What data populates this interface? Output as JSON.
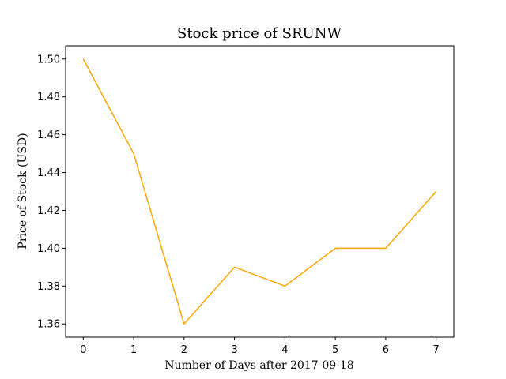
{
  "chart_data": {
    "type": "line",
    "title": "Stock price of SRUNW",
    "xlabel": "Number of Days after 2017-09-18",
    "ylabel": "Price of Stock (USD)",
    "x": [
      0,
      1,
      2,
      3,
      4,
      5,
      6,
      7
    ],
    "series": [
      {
        "values": [
          1.5,
          1.45,
          1.36,
          1.39,
          1.38,
          1.4,
          1.4,
          1.43
        ],
        "color": "#ffa500"
      }
    ],
    "x_ticks": [
      "0",
      "1",
      "2",
      "3",
      "4",
      "5",
      "6",
      "7"
    ],
    "y_ticks": [
      "1.36",
      "1.38",
      "1.40",
      "1.42",
      "1.44",
      "1.46",
      "1.48",
      "1.50"
    ],
    "xlim": [
      -0.35,
      7.35
    ],
    "ylim": [
      1.353,
      1.507
    ],
    "grid": false,
    "legend": "none"
  }
}
